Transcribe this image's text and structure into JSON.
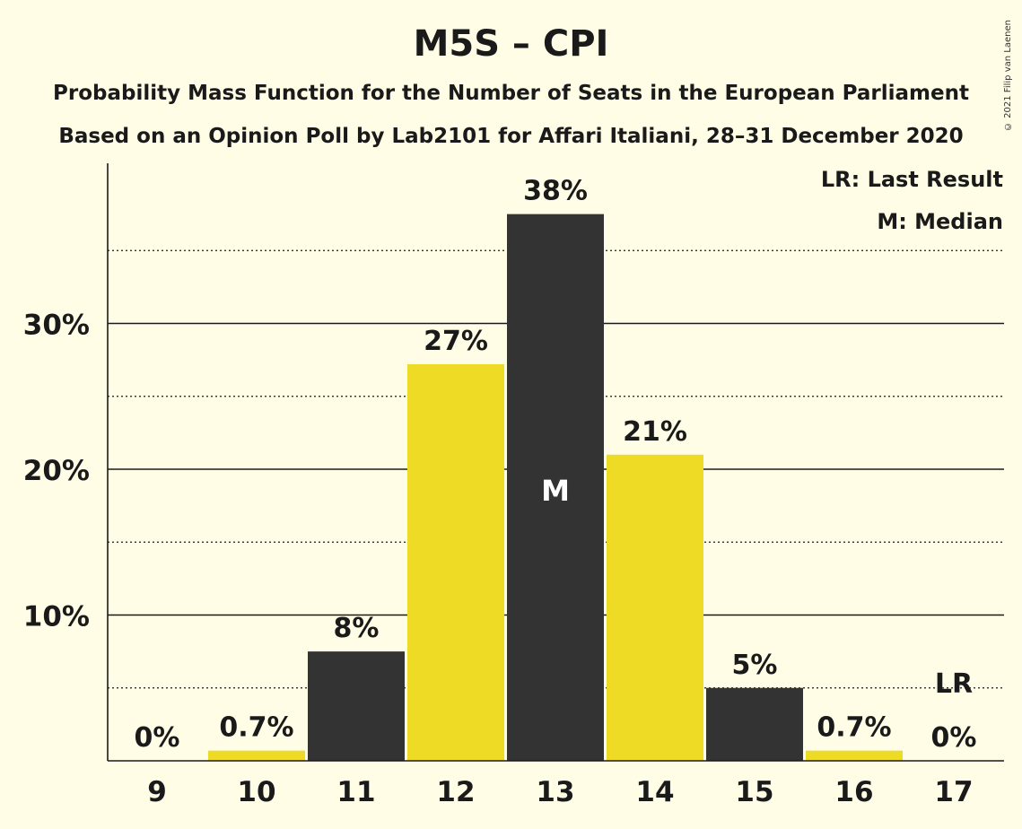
{
  "copyright": "© 2021 Filip van Laenen",
  "legend": {
    "last_result": "LR: Last Result",
    "median": "M: Median"
  },
  "colors": {
    "background": "#FFFDE6",
    "dark": "#333333",
    "yellow": "#EDDB26",
    "text": "#1a1a1a"
  },
  "chart_data": {
    "type": "bar",
    "title": "M5S – CPI",
    "subtitle": "Probability Mass Function for the Number of Seats in the European Parliament",
    "subtitle2": "Based on an Opinion Poll by Lab2101 for Affari Italiani, 28–31 December 2020",
    "xlabel": "",
    "ylabel": "",
    "categories": [
      "9",
      "10",
      "11",
      "12",
      "13",
      "14",
      "15",
      "16",
      "17"
    ],
    "values": [
      0,
      0.7,
      7.5,
      27.2,
      37.5,
      21.0,
      5.0,
      0.7,
      0
    ],
    "data_labels": [
      "0%",
      "0.7%",
      "8%",
      "27%",
      "38%",
      "21%",
      "5%",
      "0.7%",
      "0%"
    ],
    "bar_colors": [
      "dark",
      "yellow",
      "dark",
      "yellow",
      "dark",
      "yellow",
      "dark",
      "yellow",
      "dark"
    ],
    "ylim": [
      0,
      41
    ],
    "yticks_major": [
      10,
      20,
      30
    ],
    "ytick_labels": [
      "10%",
      "20%",
      "30%"
    ],
    "yticks_minor": [
      5,
      15,
      25,
      35
    ],
    "median_index": 4,
    "median_label": "M",
    "last_result_index": 8,
    "last_result_label": "LR",
    "grid": true,
    "legend_position": "top-right"
  }
}
